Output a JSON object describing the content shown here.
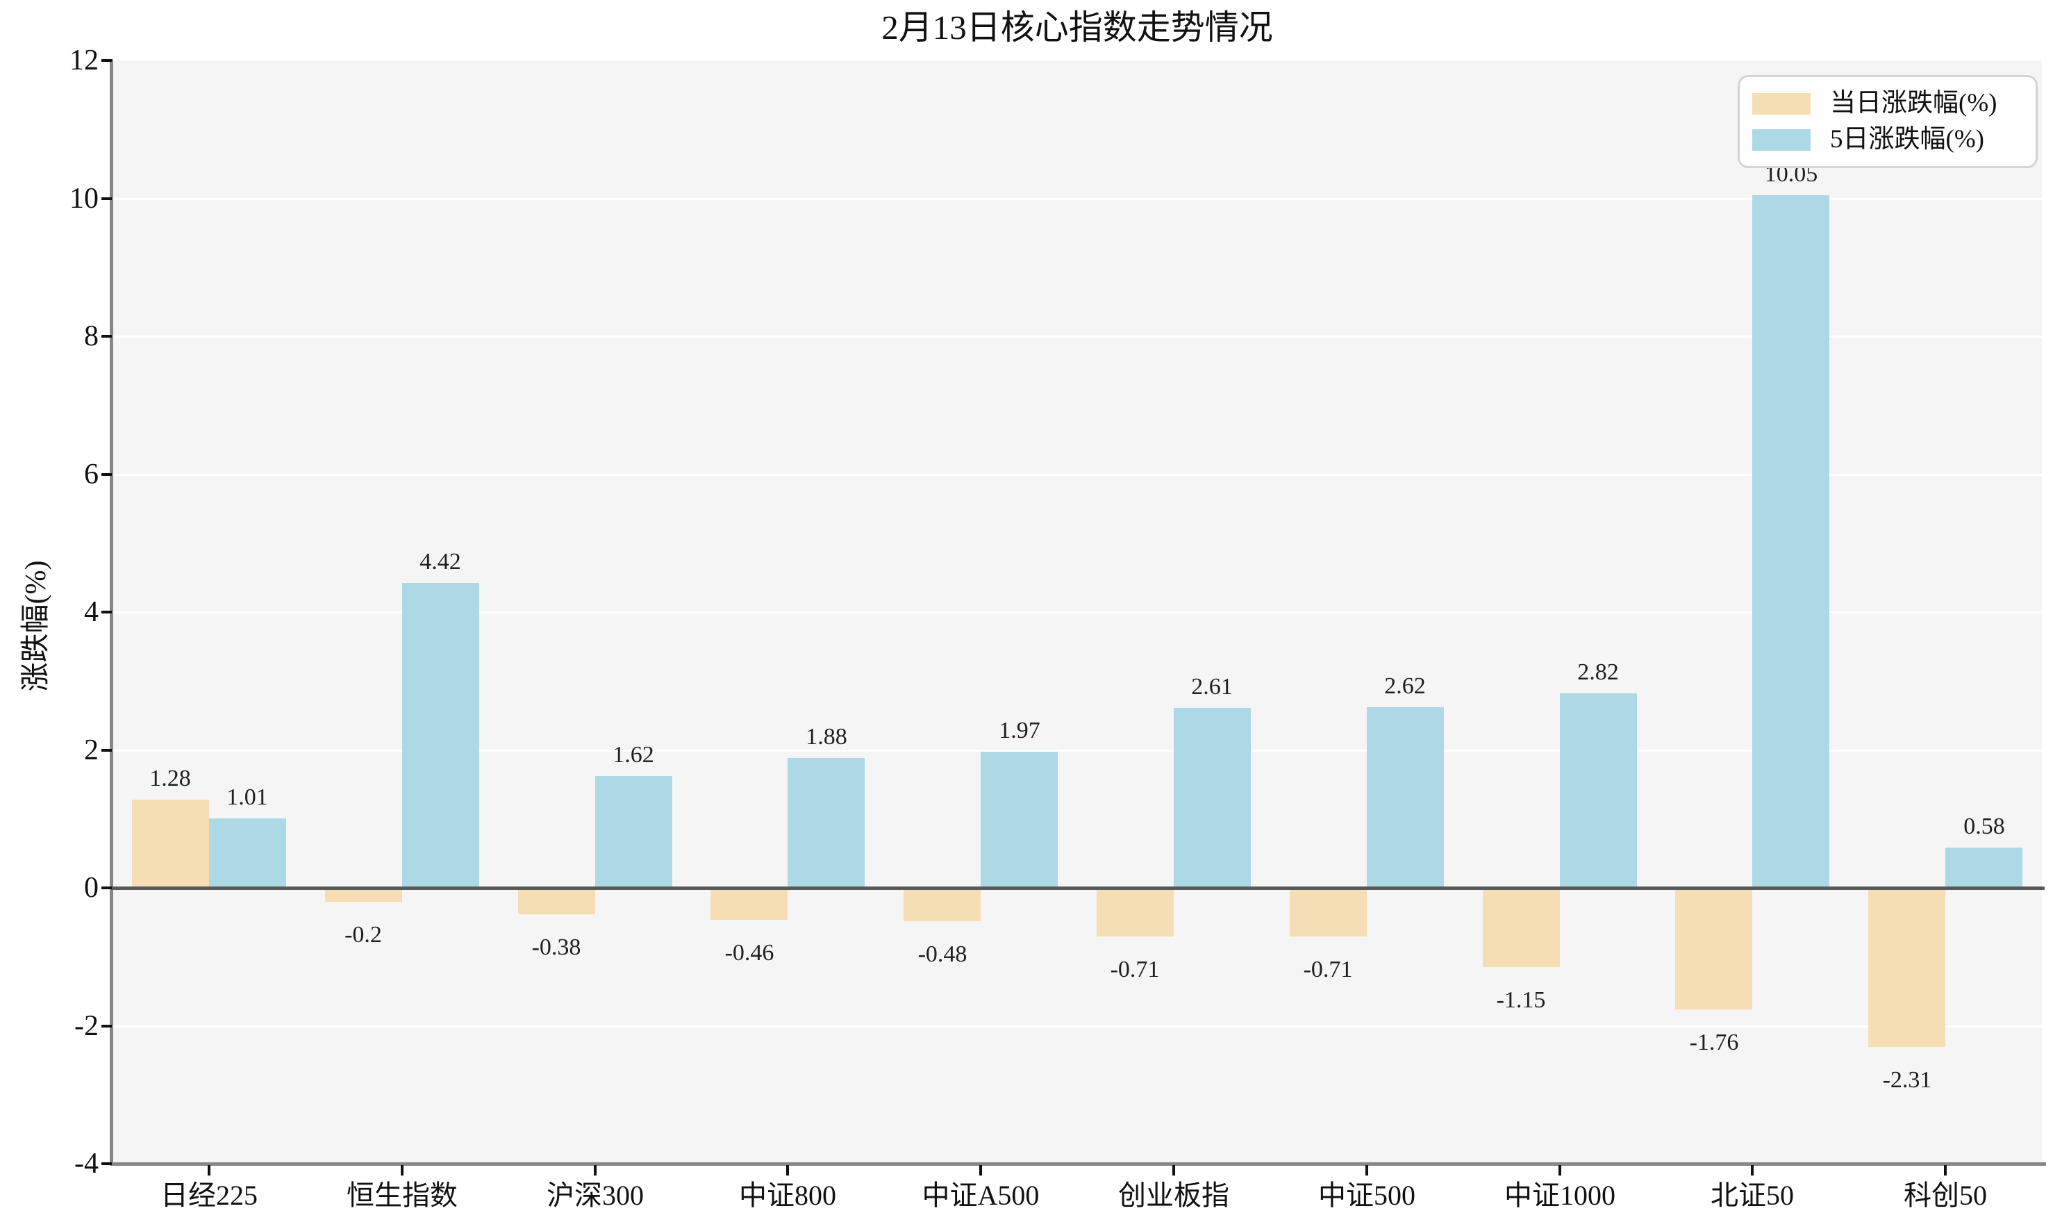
{
  "chart_data": {
    "type": "bar",
    "title": "2月13日核心指数走势情况",
    "ylabel": "涨跌幅(%)",
    "xlabel": "",
    "categories": [
      "日经225",
      "恒生指数",
      "沪深300",
      "中证800",
      "中证A500",
      "创业板指",
      "中证500",
      "中证1000",
      "北证50",
      "科创50"
    ],
    "series": [
      {
        "name": "当日涨跌幅(%)",
        "color": "#f5deb3",
        "values": [
          1.28,
          -0.2,
          -0.38,
          -0.46,
          -0.48,
          -0.71,
          -0.71,
          -1.15,
          -1.76,
          -2.31
        ]
      },
      {
        "name": "5日涨跌幅(%)",
        "color": "#add8e6",
        "values": [
          1.01,
          4.42,
          1.62,
          1.88,
          1.97,
          2.61,
          2.62,
          2.82,
          10.05,
          0.58
        ]
      }
    ],
    "ylim": [
      -4,
      12
    ],
    "yticks": [
      -4,
      -2,
      0,
      2,
      4,
      6,
      8,
      10,
      12
    ],
    "grid": true,
    "plot_background": "#f5f5f5",
    "gridline_color": "#ffffff",
    "zero_line_color": "#595959",
    "axis_spine_color": "#878787",
    "legend_position": "upper right"
  }
}
